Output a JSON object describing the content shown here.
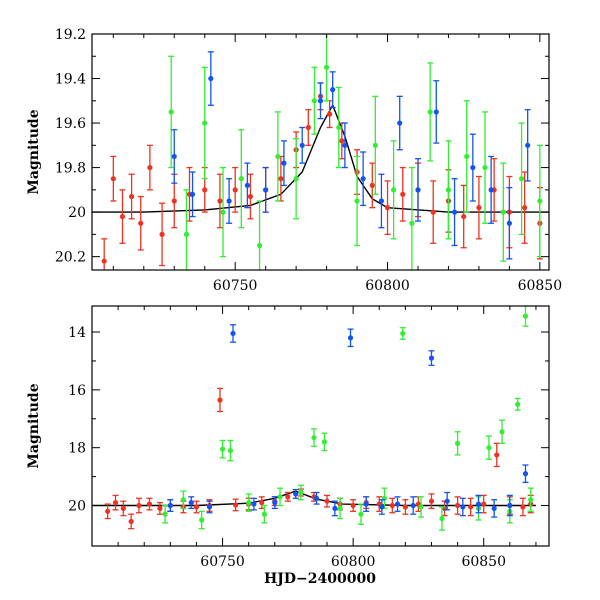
{
  "colors": {
    "red": "#ee3322",
    "green": "#33ee33",
    "blue": "#1155ee",
    "model": "#000000"
  },
  "chart_data": [
    {
      "type": "scatter",
      "title": "",
      "xlabel": "",
      "ylabel": "Magnitude",
      "xlim": [
        60703,
        60853
      ],
      "ylim": [
        20.26,
        19.2
      ],
      "y_inverted": true,
      "xticks": [
        60750,
        60800,
        60850
      ],
      "xtick_labels": [
        "60750",
        "60800",
        "60850"
      ],
      "yticks": [
        19.2,
        19.4,
        19.6,
        19.8,
        20,
        20.2
      ],
      "ytick_labels": [
        "19.2",
        "19.4",
        "19.6",
        "19.8",
        "20",
        "20.2"
      ],
      "grid": false,
      "model_curve": {
        "x": [
          60703,
          60720,
          60740,
          60755,
          60765,
          60772,
          60778,
          60782,
          60786,
          60790,
          60795,
          60800,
          60820,
          60853
        ],
        "y": [
          20.0,
          20.0,
          19.99,
          19.97,
          19.92,
          19.82,
          19.62,
          19.52,
          19.66,
          19.84,
          19.94,
          19.98,
          20.0,
          20.0
        ]
      },
      "series": [
        {
          "color_key": "red",
          "x": [
            60707,
            60710,
            60713,
            60716,
            60719,
            60722,
            60726,
            60730,
            60735,
            60740,
            60745,
            60750,
            60755,
            60760,
            60765,
            60770,
            60774,
            60778,
            60781,
            60785,
            60790,
            60795,
            60800,
            60805,
            60810,
            60815,
            60820,
            60825,
            60830,
            60835,
            60840,
            60845,
            60850
          ],
          "y": [
            20.22,
            19.85,
            20.02,
            19.93,
            20.05,
            19.8,
            20.1,
            19.95,
            19.92,
            19.9,
            19.95,
            19.9,
            19.93,
            19.9,
            19.85,
            19.72,
            19.62,
            19.48,
            19.56,
            19.68,
            19.82,
            19.88,
            19.98,
            19.92,
            19.9,
            20.0,
            19.95,
            20.02,
            19.98,
            19.9,
            20.0,
            19.98,
            20.05
          ],
          "yerr": [
            0.1,
            0.1,
            0.12,
            0.1,
            0.12,
            0.1,
            0.14,
            0.12,
            0.12,
            0.1,
            0.12,
            0.1,
            0.1,
            0.1,
            0.1,
            0.08,
            0.08,
            0.06,
            0.06,
            0.08,
            0.1,
            0.1,
            0.12,
            0.12,
            0.12,
            0.14,
            0.14,
            0.14,
            0.14,
            0.14,
            0.16,
            0.16,
            0.16
          ]
        },
        {
          "color_key": "green",
          "x": [
            60729,
            60734,
            60740,
            60746,
            60752,
            60758,
            60764,
            60770,
            60776,
            60780,
            60784,
            60790,
            60796,
            60802,
            60808,
            60814,
            60820,
            60826,
            60832,
            60838,
            60844,
            60850
          ],
          "y": [
            19.55,
            20.1,
            19.6,
            20.0,
            19.85,
            20.15,
            19.75,
            19.85,
            19.5,
            19.35,
            19.62,
            19.95,
            19.7,
            19.9,
            20.05,
            19.55,
            19.9,
            19.75,
            19.8,
            20.0,
            19.85,
            19.95
          ],
          "yerr": [
            0.25,
            0.2,
            0.25,
            0.2,
            0.22,
            0.2,
            0.2,
            0.18,
            0.15,
            0.15,
            0.18,
            0.2,
            0.22,
            0.22,
            0.25,
            0.22,
            0.22,
            0.25,
            0.25,
            0.22,
            0.25,
            0.25
          ]
        },
        {
          "color_key": "blue",
          "x": [
            60730,
            60736,
            60742,
            60748,
            60754,
            60760,
            60766,
            60772,
            60778,
            60782,
            60786,
            60792,
            60798,
            60804,
            60810,
            60816,
            60822,
            60828,
            60834,
            60840,
            60846
          ],
          "y": [
            19.75,
            19.92,
            19.4,
            19.95,
            19.88,
            19.9,
            19.78,
            19.7,
            19.5,
            19.45,
            19.7,
            19.85,
            19.95,
            19.6,
            19.9,
            19.55,
            20.0,
            19.8,
            19.9,
            20.05,
            19.7
          ],
          "yerr": [
            0.12,
            0.1,
            0.12,
            0.1,
            0.1,
            0.1,
            0.1,
            0.08,
            0.08,
            0.08,
            0.1,
            0.12,
            0.12,
            0.12,
            0.14,
            0.14,
            0.15,
            0.15,
            0.15,
            0.16,
            0.16
          ]
        }
      ]
    },
    {
      "type": "scatter",
      "title": "",
      "xlabel": "HJD−2400000",
      "ylabel": "Magnitude",
      "xlim": [
        60700,
        60875
      ],
      "ylim": [
        21.4,
        13.1
      ],
      "y_inverted": true,
      "xticks": [
        60750,
        60800,
        60850
      ],
      "xtick_labels": [
        "60750",
        "60800",
        "60850"
      ],
      "yticks": [
        14,
        16,
        18,
        20
      ],
      "ytick_labels": [
        "14",
        "16",
        "18",
        "20"
      ],
      "grid": false,
      "model_curve": {
        "x": [
          60700,
          60740,
          60760,
          60770,
          60778,
          60786,
          60796,
          60820,
          60870
        ],
        "y": [
          20.0,
          20.0,
          19.92,
          19.75,
          19.5,
          19.78,
          19.95,
          20.0,
          20.0
        ]
      },
      "series": [
        {
          "color_key": "red",
          "x": [
            60706,
            60709,
            60712,
            60715,
            60718,
            60722,
            60726,
            60730,
            60735,
            60740,
            60745,
            60749,
            60755,
            60760,
            60765,
            60770,
            60775,
            60780,
            60785,
            60790,
            60795,
            60800,
            60805,
            60810,
            60815,
            60820,
            60825,
            60830,
            60835,
            60840,
            60845,
            60850,
            60855,
            60860,
            60865,
            60868
          ],
          "y": [
            20.2,
            19.9,
            20.1,
            20.55,
            20.0,
            19.95,
            20.1,
            20.0,
            20.05,
            20.05,
            20.0,
            16.35,
            19.98,
            19.95,
            19.9,
            19.85,
            19.7,
            19.55,
            19.7,
            19.85,
            19.95,
            20.0,
            19.9,
            19.95,
            20.0,
            20.05,
            19.95,
            19.85,
            20.1,
            20.0,
            20.05,
            19.95,
            18.25,
            20.0,
            20.05,
            19.95
          ],
          "yerr": [
            0.25,
            0.25,
            0.25,
            0.25,
            0.25,
            0.2,
            0.2,
            0.2,
            0.2,
            0.2,
            0.2,
            0.4,
            0.2,
            0.2,
            0.2,
            0.15,
            0.15,
            0.12,
            0.15,
            0.2,
            0.2,
            0.2,
            0.2,
            0.25,
            0.25,
            0.25,
            0.25,
            0.25,
            0.25,
            0.3,
            0.3,
            0.3,
            0.4,
            0.3,
            0.3,
            0.3
          ]
        },
        {
          "color_key": "green",
          "x": [
            60728,
            60735,
            60742,
            60750,
            60753,
            60760,
            60766,
            60772,
            60780,
            60785,
            60789,
            60795,
            60803,
            60812,
            60819,
            60826,
            60834,
            60840,
            60848,
            60852,
            60857,
            60860,
            60863,
            60866,
            60868
          ],
          "y": [
            20.3,
            19.8,
            20.5,
            18.05,
            18.1,
            19.9,
            20.3,
            19.7,
            19.55,
            17.65,
            17.8,
            20.1,
            20.3,
            19.75,
            14.05,
            20.05,
            20.45,
            17.85,
            20.1,
            18.0,
            17.45,
            20.2,
            16.5,
            13.45,
            19.8
          ],
          "yerr": [
            0.3,
            0.3,
            0.3,
            0.3,
            0.35,
            0.3,
            0.3,
            0.3,
            0.25,
            0.3,
            0.3,
            0.35,
            0.35,
            0.35,
            0.2,
            0.35,
            0.4,
            0.4,
            0.4,
            0.4,
            0.4,
            0.4,
            0.2,
            0.35,
            0.4
          ]
        },
        {
          "color_key": "blue",
          "x": [
            60730,
            60738,
            60745,
            60754,
            60762,
            60770,
            60778,
            60786,
            60793,
            60799,
            60805,
            60811,
            60817,
            60823,
            60830,
            60836,
            60842,
            60848,
            60854,
            60860,
            60866
          ],
          "y": [
            20.0,
            19.9,
            20.05,
            14.05,
            19.95,
            19.9,
            19.6,
            19.75,
            20.1,
            14.2,
            19.95,
            20.05,
            19.95,
            20.0,
            14.9,
            19.85,
            20.05,
            19.95,
            20.1,
            20.0,
            18.9
          ],
          "yerr": [
            0.2,
            0.2,
            0.2,
            0.3,
            0.2,
            0.2,
            0.15,
            0.2,
            0.25,
            0.3,
            0.25,
            0.25,
            0.25,
            0.3,
            0.25,
            0.3,
            0.3,
            0.3,
            0.3,
            0.35,
            0.3
          ]
        }
      ]
    }
  ]
}
